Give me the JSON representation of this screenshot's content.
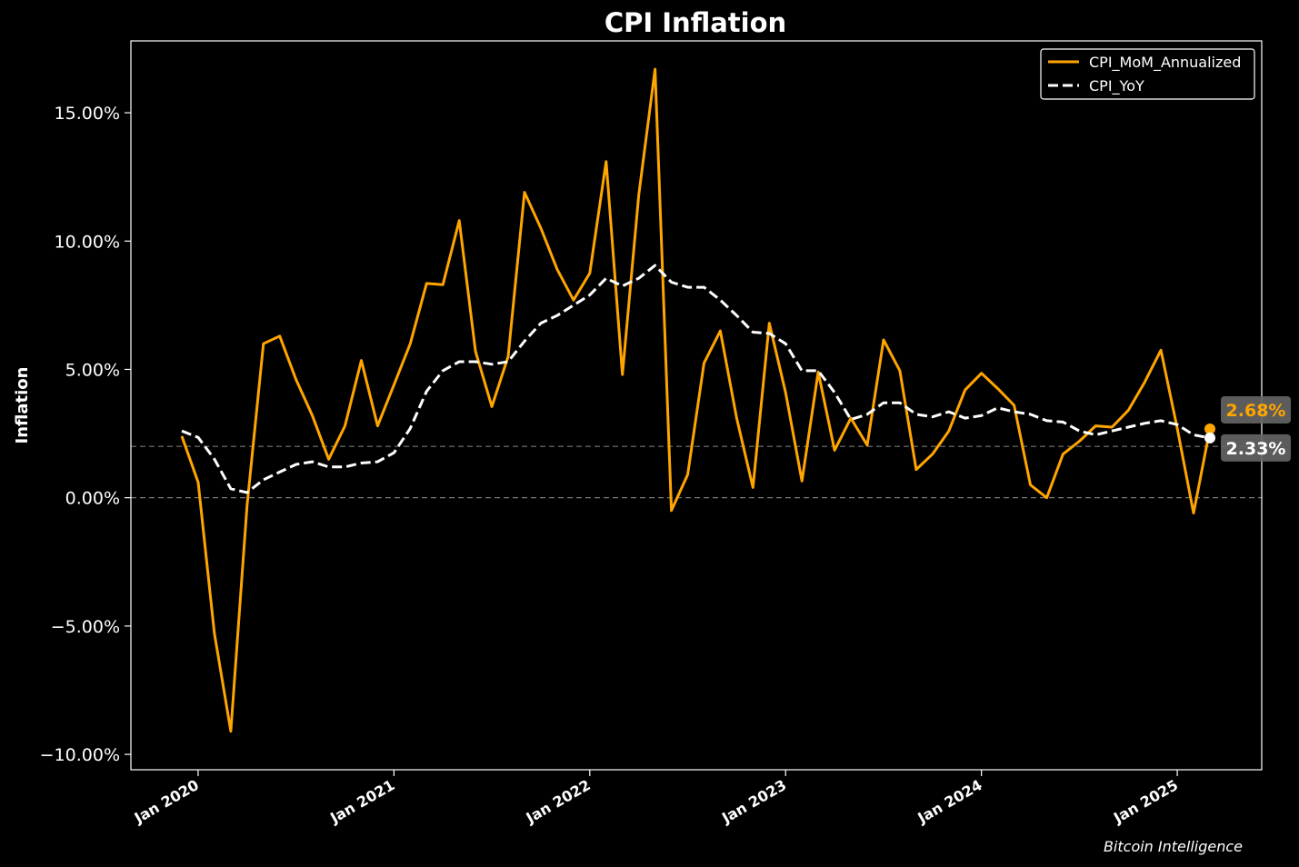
{
  "chart_data": {
    "type": "line",
    "title": "CPI Inflation",
    "xlabel": "",
    "ylabel": "Inflation",
    "ylim": [
      -10.6,
      17.8
    ],
    "y_ticks": [
      -10,
      -5,
      0,
      5,
      10,
      15
    ],
    "y_tick_labels": [
      "−10.00%",
      "−5.00%",
      "0.00%",
      "5.00%",
      "10.00%",
      "15.00%"
    ],
    "x_tick_labels": [
      "Jan 2020",
      "Jan 2021",
      "Jan 2022",
      "Jan 2023",
      "Jan 2024",
      "Jan 2025"
    ],
    "x_tick_index": [
      1,
      13,
      25,
      37,
      49,
      61
    ],
    "x_start": "Dec 2019",
    "x_end": "Feb 2025",
    "reference_lines": [
      0,
      2
    ],
    "grid": false,
    "legend_position": "top-right",
    "series": [
      {
        "name": "CPI_MoM_Annualized",
        "color": "#FFA500",
        "style": "solid",
        "values": [
          2.4,
          0.6,
          -5.3,
          -9.1,
          -0.3,
          6.0,
          6.3,
          4.6,
          3.2,
          1.5,
          2.8,
          5.35,
          2.8,
          4.4,
          6.0,
          8.35,
          8.3,
          10.8,
          5.7,
          3.55,
          5.5,
          11.9,
          10.5,
          8.9,
          7.7,
          8.75,
          13.1,
          4.8,
          11.8,
          16.7,
          -0.5,
          0.9,
          5.25,
          6.5,
          3.1,
          0.4,
          6.8,
          4.1,
          0.65,
          4.9,
          1.85,
          3.1,
          2.05,
          6.15,
          4.95,
          1.1,
          1.7,
          2.6,
          4.2,
          4.85,
          4.25,
          3.6,
          0.5,
          0.0,
          1.7,
          2.2,
          2.8,
          2.75,
          3.4,
          4.5,
          5.75,
          2.7,
          -0.6,
          2.68
        ],
        "end_label": "2.68%"
      },
      {
        "name": "CPI_YoY",
        "color": "#FFFFFF",
        "style": "dashed",
        "values": [
          2.6,
          2.35,
          1.5,
          0.35,
          0.2,
          0.7,
          1.0,
          1.3,
          1.4,
          1.2,
          1.2,
          1.35,
          1.4,
          1.75,
          2.7,
          4.15,
          4.95,
          5.3,
          5.3,
          5.2,
          5.3,
          6.1,
          6.8,
          7.1,
          7.5,
          7.9,
          8.55,
          8.25,
          8.55,
          9.05,
          8.4,
          8.2,
          8.2,
          7.7,
          7.1,
          6.45,
          6.4,
          6.0,
          4.95,
          4.95,
          4.1,
          3.05,
          3.25,
          3.7,
          3.7,
          3.25,
          3.15,
          3.35,
          3.1,
          3.2,
          3.5,
          3.35,
          3.25,
          3.0,
          2.95,
          2.6,
          2.45,
          2.6,
          2.75,
          2.9,
          3.0,
          2.85,
          2.45,
          2.33
        ],
        "end_label": "2.33%"
      }
    ],
    "watermark": "Bitcoin Intelligence"
  }
}
